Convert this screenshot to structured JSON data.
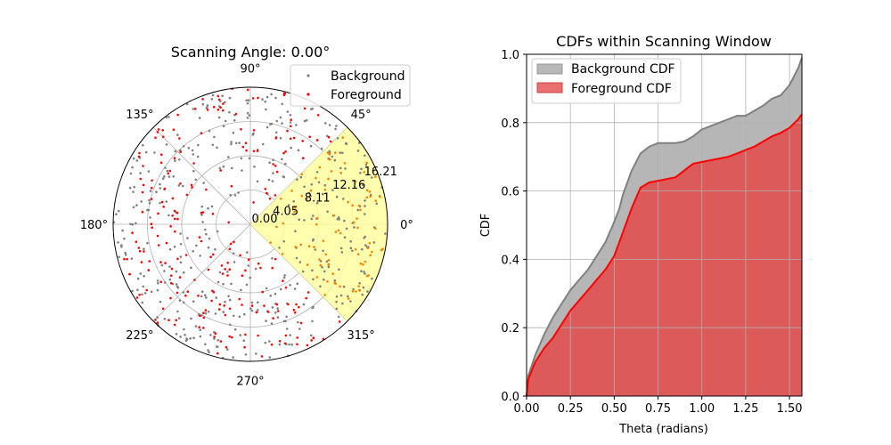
{
  "chart_data": [
    {
      "type": "scatter",
      "projection": "polar",
      "title": "Scanning Angle: 0.00°",
      "angle_tick_labels": [
        "0°",
        "45°",
        "90°",
        "135°",
        "180°",
        "225°",
        "270°",
        "315°"
      ],
      "radial_tick_labels": [
        "0.00",
        "4.05",
        "8.11",
        "12.16",
        "16.21"
      ],
      "rmax": 16.21,
      "grid": true,
      "scan_window_deg": [
        -45,
        45
      ],
      "legend_position": "top-right",
      "series": [
        {
          "name": "Background",
          "color": "#808080",
          "point_count": 450,
          "r_range": [
            3,
            16.2
          ],
          "theta_range_deg": [
            0,
            360
          ]
        },
        {
          "name": "Foreground",
          "color": "#ff0000",
          "point_count": 300,
          "r_range": [
            2,
            16.2
          ],
          "theta_range_deg": [
            0,
            360
          ],
          "inside_window_color": "#ff8000"
        }
      ]
    },
    {
      "type": "area",
      "title": "CDFs within Scanning Window",
      "xlabel": "Theta (radians)",
      "ylabel": "CDF",
      "xlim": [
        0,
        1.5708
      ],
      "ylim": [
        0,
        1.0
      ],
      "xticks": [
        "0.00",
        "0.25",
        "0.50",
        "0.75",
        "1.00",
        "1.25",
        "1.50"
      ],
      "yticks": [
        "0.0",
        "0.2",
        "0.4",
        "0.6",
        "0.8",
        "1.0"
      ],
      "grid": true,
      "legend_position": "top-left",
      "series": [
        {
          "name": "Background CDF",
          "color": "#a9a9a9",
          "line_color": "#808080",
          "x": [
            0.0,
            0.01,
            0.05,
            0.1,
            0.15,
            0.2,
            0.25,
            0.3,
            0.35,
            0.4,
            0.45,
            0.5,
            0.53,
            0.55,
            0.6,
            0.65,
            0.7,
            0.75,
            0.8,
            0.85,
            0.9,
            0.95,
            1.0,
            1.05,
            1.1,
            1.15,
            1.2,
            1.25,
            1.3,
            1.35,
            1.4,
            1.45,
            1.5,
            1.55,
            1.5708
          ],
          "values": [
            0.0,
            0.06,
            0.12,
            0.18,
            0.23,
            0.27,
            0.31,
            0.34,
            0.37,
            0.41,
            0.45,
            0.51,
            0.55,
            0.59,
            0.66,
            0.71,
            0.73,
            0.74,
            0.74,
            0.74,
            0.745,
            0.76,
            0.78,
            0.79,
            0.8,
            0.81,
            0.82,
            0.82,
            0.835,
            0.85,
            0.87,
            0.88,
            0.91,
            0.96,
            0.99
          ]
        },
        {
          "name": "Foreground CDF",
          "color": "#e06060",
          "line_color": "#ff0000",
          "x": [
            0.0,
            0.01,
            0.05,
            0.1,
            0.15,
            0.2,
            0.25,
            0.3,
            0.35,
            0.4,
            0.45,
            0.5,
            0.55,
            0.6,
            0.65,
            0.7,
            0.75,
            0.8,
            0.85,
            0.9,
            0.95,
            1.0,
            1.05,
            1.1,
            1.15,
            1.2,
            1.25,
            1.3,
            1.35,
            1.4,
            1.45,
            1.5,
            1.55,
            1.5708
          ],
          "values": [
            0.0,
            0.05,
            0.1,
            0.14,
            0.17,
            0.21,
            0.25,
            0.28,
            0.31,
            0.34,
            0.37,
            0.41,
            0.48,
            0.55,
            0.61,
            0.625,
            0.63,
            0.635,
            0.64,
            0.66,
            0.68,
            0.685,
            0.69,
            0.695,
            0.7,
            0.71,
            0.72,
            0.73,
            0.745,
            0.76,
            0.77,
            0.785,
            0.81,
            0.825
          ]
        }
      ]
    }
  ]
}
